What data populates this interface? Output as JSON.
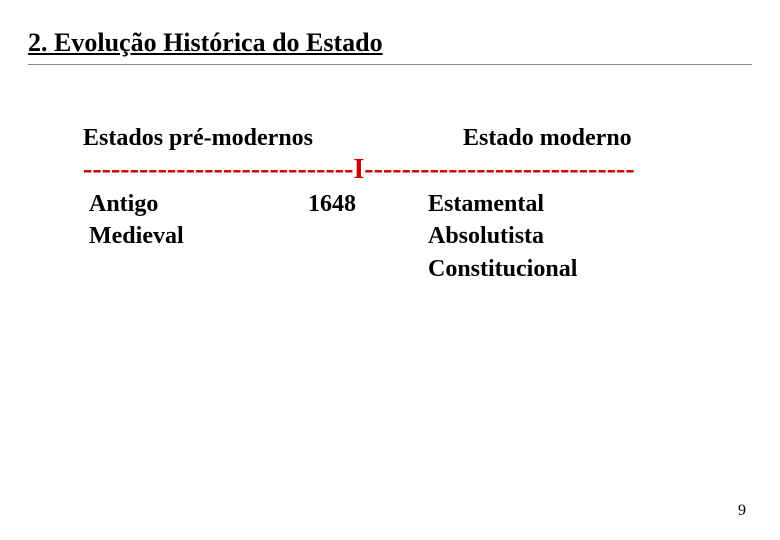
{
  "title": "2. Evolução Histórica do Estado",
  "header_left": "Estados pré-modernos",
  "header_right": "Estado moderno",
  "timeline": "-----------------------------I-----------------------------",
  "timeline_color": "#cc0000",
  "left_items": {
    "line1": "Antigo",
    "line2": "Medieval"
  },
  "mid_year": "1648",
  "right_items": {
    "line1": "Estamental",
    "line2": "Absolutista",
    "line3": "Constitucional"
  },
  "page_number": "9"
}
